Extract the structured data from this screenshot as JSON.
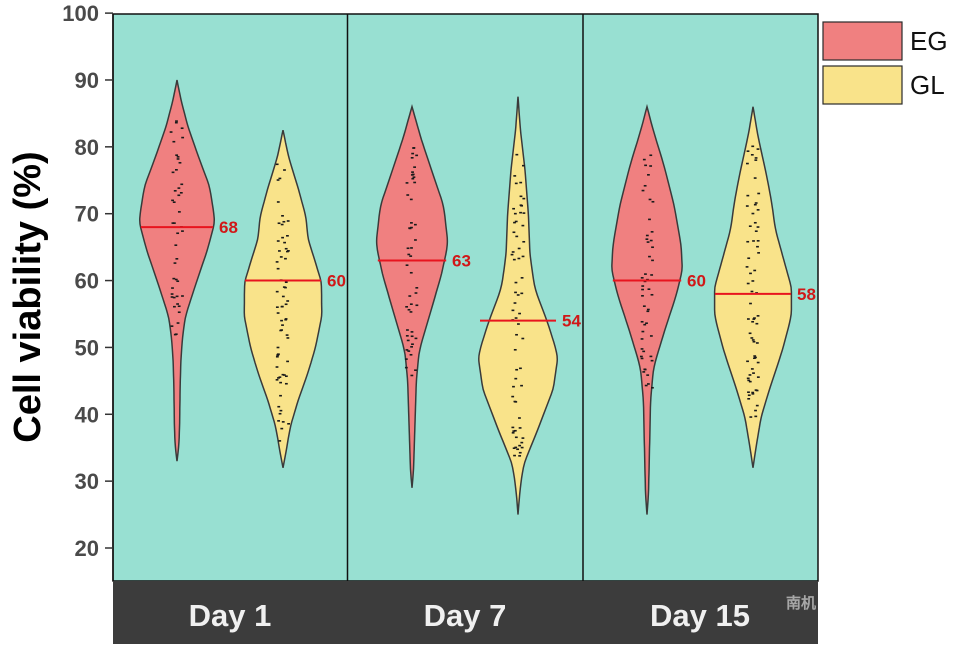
{
  "chart_data": {
    "type": "violin",
    "ylabel": "Cell viability (%)",
    "xlabel": "",
    "title": "",
    "ylim": [
      15,
      100
    ],
    "yticks": [
      20,
      30,
      40,
      50,
      60,
      70,
      80,
      90,
      100
    ],
    "categories": [
      "Day 1",
      "Day 7",
      "Day 15"
    ],
    "grid": false,
    "legend_position": "right",
    "series": [
      {
        "name": "EG",
        "color": "#f08080",
        "medians": [
          68,
          63,
          60
        ],
        "median_labels": [
          "68",
          "63",
          "60"
        ],
        "ranges": [
          [
            33,
            90
          ],
          [
            29,
            86
          ],
          [
            25,
            86
          ]
        ]
      },
      {
        "name": "GL",
        "color": "#f9e38a",
        "medians": [
          60,
          54,
          58
        ],
        "median_labels": [
          "60",
          "54",
          "58"
        ],
        "ranges": [
          [
            32,
            82.5
          ],
          [
            25,
            87.5
          ],
          [
            32,
            86
          ]
        ]
      }
    ],
    "colors": {
      "plot_background": "#98e0d2",
      "category_band": "#3c3c3c",
      "median_line": "#e8141e",
      "median_text": "#d01818",
      "outline": "#3a3a3a"
    }
  },
  "watermark": "南机"
}
